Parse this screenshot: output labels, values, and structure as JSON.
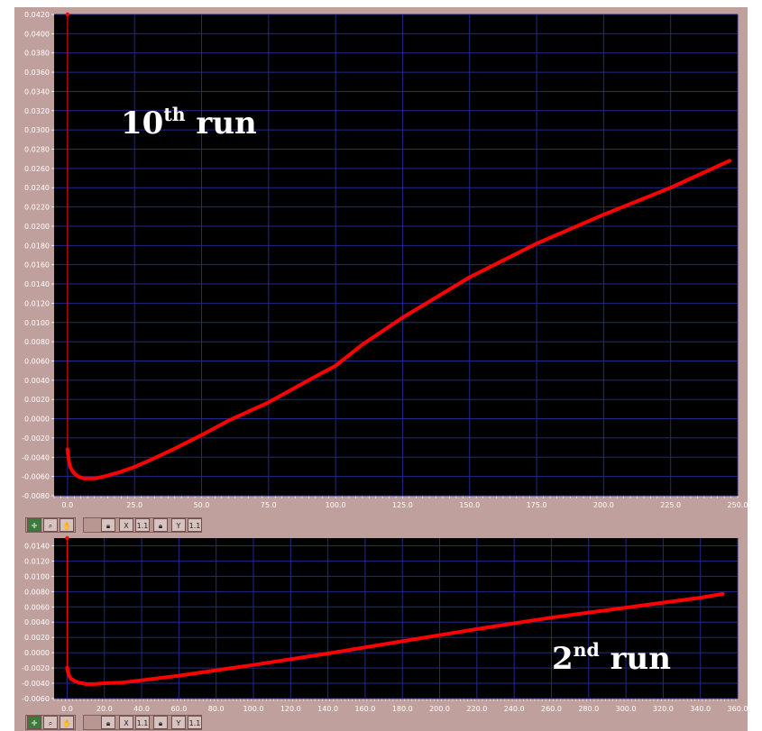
{
  "chart_data": [
    {
      "type": "line",
      "annotation": {
        "main": "10",
        "sup": "th",
        "tail": " run"
      },
      "xlim": [
        -5,
        250
      ],
      "ylim": [
        -0.008,
        0.042
      ],
      "x_ticks": [
        "0.0",
        "25.0",
        "50.0",
        "75.0",
        "100.0",
        "125.0",
        "150.0",
        "175.0",
        "200.0",
        "225.0",
        "250.0"
      ],
      "y_ticks": [
        "-0.0080",
        "-0.0060",
        "-0.0040",
        "-0.0020",
        "0.0000",
        "0.0020",
        "0.0040",
        "0.0060",
        "0.0080",
        "0.0100",
        "0.0120",
        "0.0140",
        "0.0160",
        "0.0180",
        "0.0200",
        "0.0220",
        "0.0240",
        "0.0260",
        "0.0280",
        "0.0300",
        "0.0320",
        "0.0340",
        "0.0360",
        "0.0380",
        "0.0400",
        "0.0420"
      ],
      "grid": true,
      "series": [
        {
          "color": "#ff0000",
          "x": [
            0,
            0,
            0.3,
            0.6,
            1,
            2,
            3,
            4,
            5,
            6,
            7,
            8,
            10,
            12,
            15,
            20,
            25,
            30,
            40,
            50,
            60,
            75,
            90,
            100,
            110,
            125,
            150,
            175,
            200,
            225,
            247
          ],
          "y": [
            0.042,
            -0.0032,
            -0.004,
            -0.0045,
            -0.005,
            -0.0055,
            -0.0058,
            -0.006,
            -0.0061,
            -0.0062,
            -0.0062,
            -0.0062,
            -0.0062,
            -0.0061,
            -0.0059,
            -0.0055,
            -0.005,
            -0.0044,
            -0.0031,
            -0.0017,
            -0.0002,
            0.0017,
            0.004,
            0.0055,
            0.0077,
            0.0105,
            0.0147,
            0.0182,
            0.0212,
            0.024,
            0.0268
          ]
        }
      ]
    },
    {
      "type": "line",
      "annotation": {
        "main": "2",
        "sup": "nd",
        "tail": " run"
      },
      "xlim": [
        -7,
        360
      ],
      "ylim": [
        -0.006,
        0.015
      ],
      "x_ticks": [
        "0.0",
        "20.0",
        "40.0",
        "60.0",
        "80.0",
        "100.0",
        "120.0",
        "140.0",
        "160.0",
        "180.0",
        "200.0",
        "220.0",
        "240.0",
        "260.0",
        "280.0",
        "300.0",
        "320.0",
        "340.0",
        "360.0"
      ],
      "y_ticks": [
        "-0.0060",
        "-0.0040",
        "-0.0020",
        "0.0000",
        "0.0020",
        "0.0040",
        "0.0060",
        "0.0080",
        "0.0100",
        "0.0120",
        "0.0140"
      ],
      "grid": true,
      "series": [
        {
          "color": "#ff0000",
          "x": [
            0,
            0,
            0.5,
            1,
            2,
            4,
            6,
            8,
            10,
            12,
            15,
            20,
            30,
            40,
            60,
            80,
            100,
            140,
            180,
            220,
            260,
            300,
            340,
            352
          ],
          "y": [
            0.015,
            -0.002,
            -0.0026,
            -0.003,
            -0.0034,
            -0.0037,
            -0.0039,
            -0.004,
            -0.0041,
            -0.0041,
            -0.0041,
            -0.004,
            -0.0039,
            -0.0036,
            -0.003,
            -0.0023,
            -0.0016,
            -0.0001,
            0.0015,
            0.0031,
            0.0046,
            0.0059,
            0.0072,
            0.0077
          ]
        }
      ]
    }
  ],
  "toolbar_icons": [
    "crosshair-cursor-icon",
    "zoom-icon",
    "pan-hand-icon",
    "lock-icon",
    "x-scale-icon",
    "x-format-icon",
    "lock-icon",
    "y-scale-icon",
    "y-format-icon"
  ]
}
